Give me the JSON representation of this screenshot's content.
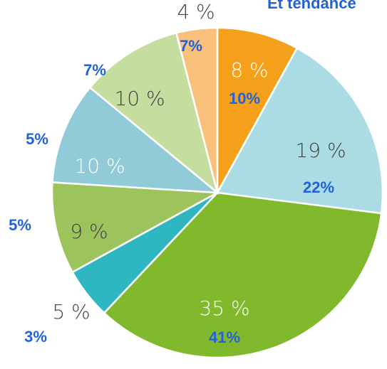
{
  "chart_data": {
    "type": "pie",
    "title": "Et tendance",
    "series": [
      {
        "values": [
          8,
          19,
          35,
          5,
          9,
          10,
          10,
          4
        ],
        "value_labels": [
          "8 %",
          "19 %",
          "35 %",
          "5 %",
          "9 %",
          "10 %",
          "10 %",
          "4 %"
        ],
        "colors": [
          "#f5a01a",
          "#abdbe3",
          "#80ba2c",
          "#2eb6c1",
          "#9dc45c",
          "#90cbd7",
          "#c6dda0",
          "#f9c07c"
        ]
      },
      {
        "values": [
          10,
          22,
          41,
          3,
          5,
          5,
          7,
          7
        ],
        "value_labels": [
          "10%",
          "22%",
          "41%",
          "3%",
          "5%",
          "5%",
          "7%",
          "7%"
        ],
        "color": "#2262d9"
      }
    ]
  }
}
